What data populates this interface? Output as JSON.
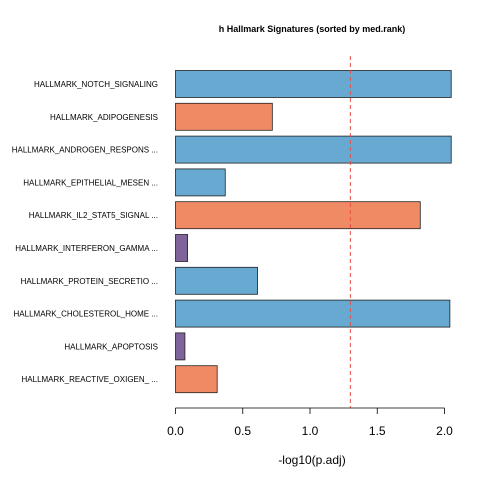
{
  "chart_data": {
    "type": "bar",
    "orientation": "horizontal",
    "title": "h Hallmark Signatures (sorted by med.rank)",
    "xlabel": "-log10(p.adj)",
    "ylabel": "",
    "xlim": [
      0,
      2.1
    ],
    "xticks": [
      "0.0",
      "0.5",
      "1.0",
      "1.5",
      "2.0"
    ],
    "reference_line": {
      "x": 1.3,
      "style": "dashed",
      "color": "#e8504a"
    },
    "categories": [
      "HALLMARK_NOTCH_SIGNALING",
      "HALLMARK_ADIPOGENESIS",
      "HALLMARK_ANDROGEN_RESPONS ...",
      "HALLMARK_EPITHELIAL_MESEN ...",
      "HALLMARK_IL2_STAT5_SIGNAL ...",
      "HALLMARK_INTERFERON_GAMMA ...",
      "HALLMARK_PROTEIN_SECRETIO ...",
      "HALLMARK_CHOLESTEROL_HOME ...",
      "HALLMARK_APOPTOSIS",
      "HALLMARK_REACTIVE_OXIGEN_ ..."
    ],
    "values": [
      2.05,
      0.72,
      2.05,
      0.37,
      1.82,
      0.09,
      0.61,
      2.04,
      0.07,
      0.31
    ],
    "colors": [
      "#67a9d1",
      "#f08a64",
      "#67a9d1",
      "#67a9d1",
      "#f08a64",
      "#7f639b",
      "#67a9d1",
      "#67a9d1",
      "#7f639b",
      "#f08a64"
    ],
    "grid": false,
    "legend": "none"
  }
}
